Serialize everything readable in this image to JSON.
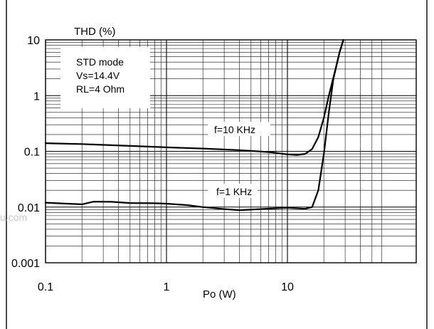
{
  "chart_data": {
    "type": "line",
    "title": "",
    "ylabel": "THD (%)",
    "xlabel": "Po (W)",
    "x_scale": "log",
    "y_scale": "log",
    "xlim": [
      0.1,
      60
    ],
    "ylim": [
      0.001,
      10
    ],
    "x_ticks": [
      "0.1",
      "1",
      "10"
    ],
    "y_ticks": [
      "10",
      "1",
      "0.1",
      "0.01",
      "0.001"
    ],
    "grid": true,
    "annotation_lines": [
      "STD mode",
      "Vs=14.4V",
      "RL=4 Ohm"
    ],
    "series": [
      {
        "name": "f=10 KHz",
        "points": [
          [
            0.1,
            0.14
          ],
          [
            0.2,
            0.135
          ],
          [
            0.5,
            0.125
          ],
          [
            1,
            0.118
          ],
          [
            2,
            0.112
          ],
          [
            4,
            0.105
          ],
          [
            7,
            0.097
          ],
          [
            10,
            0.088
          ],
          [
            12,
            0.086
          ],
          [
            14,
            0.09
          ],
          [
            16,
            0.11
          ],
          [
            18,
            0.18
          ],
          [
            20,
            0.4
          ],
          [
            22,
            1.0
          ],
          [
            25,
            3.0
          ],
          [
            27,
            6.0
          ],
          [
            29,
            10
          ]
        ]
      },
      {
        "name": "f=1 KHz",
        "points": [
          [
            0.1,
            0.012
          ],
          [
            0.15,
            0.0115
          ],
          [
            0.2,
            0.0112
          ],
          [
            0.25,
            0.0125
          ],
          [
            0.35,
            0.0124
          ],
          [
            0.5,
            0.0118
          ],
          [
            0.8,
            0.0117
          ],
          [
            1,
            0.0115
          ],
          [
            1.5,
            0.0108
          ],
          [
            2,
            0.01
          ],
          [
            3,
            0.0092
          ],
          [
            4,
            0.0088
          ],
          [
            6,
            0.0092
          ],
          [
            8,
            0.0095
          ],
          [
            10,
            0.0097
          ],
          [
            14,
            0.0093
          ],
          [
            16,
            0.01
          ],
          [
            18,
            0.02
          ],
          [
            20,
            0.09
          ],
          [
            22,
            0.5
          ],
          [
            24,
            2.0
          ],
          [
            27,
            6.0
          ],
          [
            29,
            10
          ]
        ]
      }
    ]
  },
  "watermark": "u.com"
}
